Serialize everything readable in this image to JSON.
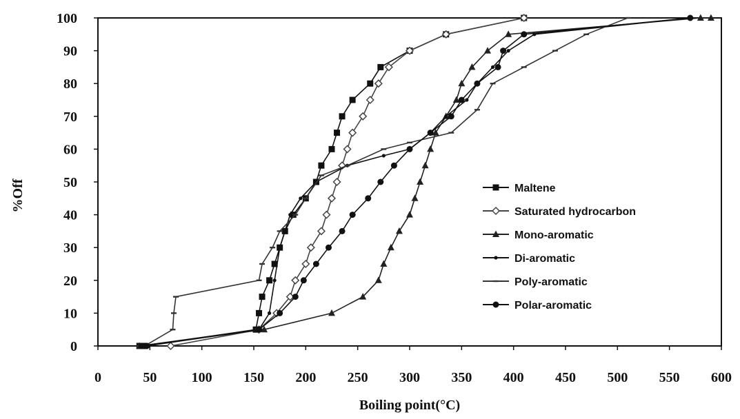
{
  "chart_data": {
    "type": "line",
    "xlabel": "Boiling point(°C)",
    "ylabel": "%Off",
    "xlim": [
      0,
      600
    ],
    "ylim": [
      0,
      100
    ],
    "x_ticks": [
      0,
      50,
      100,
      150,
      200,
      250,
      300,
      350,
      400,
      450,
      500,
      550,
      600
    ],
    "y_ticks": [
      0,
      10,
      20,
      30,
      40,
      50,
      60,
      70,
      80,
      90,
      100
    ],
    "grid": false,
    "legend_position": "center-right",
    "series": [
      {
        "name": "Maltene",
        "marker": "square",
        "color": "#111111",
        "points": [
          [
            40,
            0
          ],
          [
            45,
            0
          ],
          [
            152,
            5
          ],
          [
            155,
            10
          ],
          [
            158,
            15
          ],
          [
            165,
            20
          ],
          [
            170,
            25
          ],
          [
            175,
            30
          ],
          [
            180,
            35
          ],
          [
            188,
            40
          ],
          [
            200,
            45
          ],
          [
            210,
            50
          ],
          [
            215,
            55
          ],
          [
            225,
            60
          ],
          [
            230,
            65
          ],
          [
            235,
            70
          ],
          [
            245,
            75
          ],
          [
            262,
            80
          ],
          [
            272,
            85
          ],
          [
            300,
            90
          ],
          [
            335,
            95
          ],
          [
            410,
            100
          ]
        ]
      },
      {
        "name": "Saturated hydrocarbon",
        "marker": "diamond",
        "color": "#444444",
        "points": [
          [
            70,
            0
          ],
          [
            155,
            5
          ],
          [
            172,
            10
          ],
          [
            185,
            15
          ],
          [
            190,
            20
          ],
          [
            200,
            25
          ],
          [
            205,
            30
          ],
          [
            215,
            35
          ],
          [
            220,
            40
          ],
          [
            225,
            45
          ],
          [
            230,
            50
          ],
          [
            235,
            55
          ],
          [
            240,
            60
          ],
          [
            245,
            65
          ],
          [
            255,
            70
          ],
          [
            262,
            75
          ],
          [
            270,
            80
          ],
          [
            280,
            85
          ],
          [
            300,
            90
          ],
          [
            335,
            95
          ],
          [
            410,
            100
          ]
        ]
      },
      {
        "name": "Mono-aromatic",
        "marker": "triangle",
        "color": "#222222",
        "points": [
          [
            40,
            0
          ],
          [
            160,
            5
          ],
          [
            225,
            10
          ],
          [
            255,
            15
          ],
          [
            270,
            20
          ],
          [
            275,
            25
          ],
          [
            282,
            30
          ],
          [
            290,
            35
          ],
          [
            300,
            40
          ],
          [
            305,
            45
          ],
          [
            310,
            50
          ],
          [
            315,
            55
          ],
          [
            320,
            60
          ],
          [
            325,
            65
          ],
          [
            335,
            70
          ],
          [
            345,
            75
          ],
          [
            350,
            80
          ],
          [
            360,
            85
          ],
          [
            375,
            90
          ],
          [
            395,
            95
          ],
          [
            580,
            100
          ],
          [
            590,
            100
          ]
        ]
      },
      {
        "name": "Di-aromatic",
        "marker": "dot",
        "color": "#111111",
        "points": [
          [
            40,
            0
          ],
          [
            155,
            5
          ],
          [
            165,
            10
          ],
          [
            170,
            20
          ],
          [
            175,
            30
          ],
          [
            185,
            40
          ],
          [
            195,
            45
          ],
          [
            210,
            50
          ],
          [
            240,
            55
          ],
          [
            275,
            58
          ],
          [
            300,
            60
          ],
          [
            320,
            65
          ],
          [
            335,
            70
          ],
          [
            355,
            75
          ],
          [
            365,
            80
          ],
          [
            380,
            85
          ],
          [
            395,
            90
          ],
          [
            420,
            95
          ],
          [
            570,
            100
          ]
        ]
      },
      {
        "name": "Poly-aromatic",
        "marker": "dash",
        "color": "#333333",
        "points": [
          [
            40,
            0
          ],
          [
            45,
            0
          ],
          [
            72,
            5
          ],
          [
            73,
            10
          ],
          [
            75,
            15
          ],
          [
            155,
            20
          ],
          [
            158,
            25
          ],
          [
            168,
            30
          ],
          [
            175,
            35
          ],
          [
            190,
            40
          ],
          [
            200,
            45
          ],
          [
            215,
            52
          ],
          [
            240,
            55
          ],
          [
            275,
            60
          ],
          [
            300,
            62
          ],
          [
            340,
            65
          ],
          [
            365,
            72
          ],
          [
            380,
            80
          ],
          [
            410,
            85
          ],
          [
            440,
            90
          ],
          [
            470,
            95
          ],
          [
            510,
            100
          ]
        ]
      },
      {
        "name": "Polar-aromatic",
        "marker": "circle",
        "color": "#111111",
        "points": [
          [
            42,
            0
          ],
          [
            47,
            0
          ],
          [
            155,
            5
          ],
          [
            175,
            10
          ],
          [
            190,
            15
          ],
          [
            198,
            20
          ],
          [
            210,
            25
          ],
          [
            222,
            30
          ],
          [
            235,
            35
          ],
          [
            245,
            40
          ],
          [
            260,
            45
          ],
          [
            272,
            50
          ],
          [
            285,
            55
          ],
          [
            300,
            60
          ],
          [
            320,
            65
          ],
          [
            340,
            70
          ],
          [
            350,
            75
          ],
          [
            365,
            80
          ],
          [
            385,
            85
          ],
          [
            390,
            90
          ],
          [
            410,
            95
          ],
          [
            570,
            100
          ]
        ]
      }
    ]
  }
}
